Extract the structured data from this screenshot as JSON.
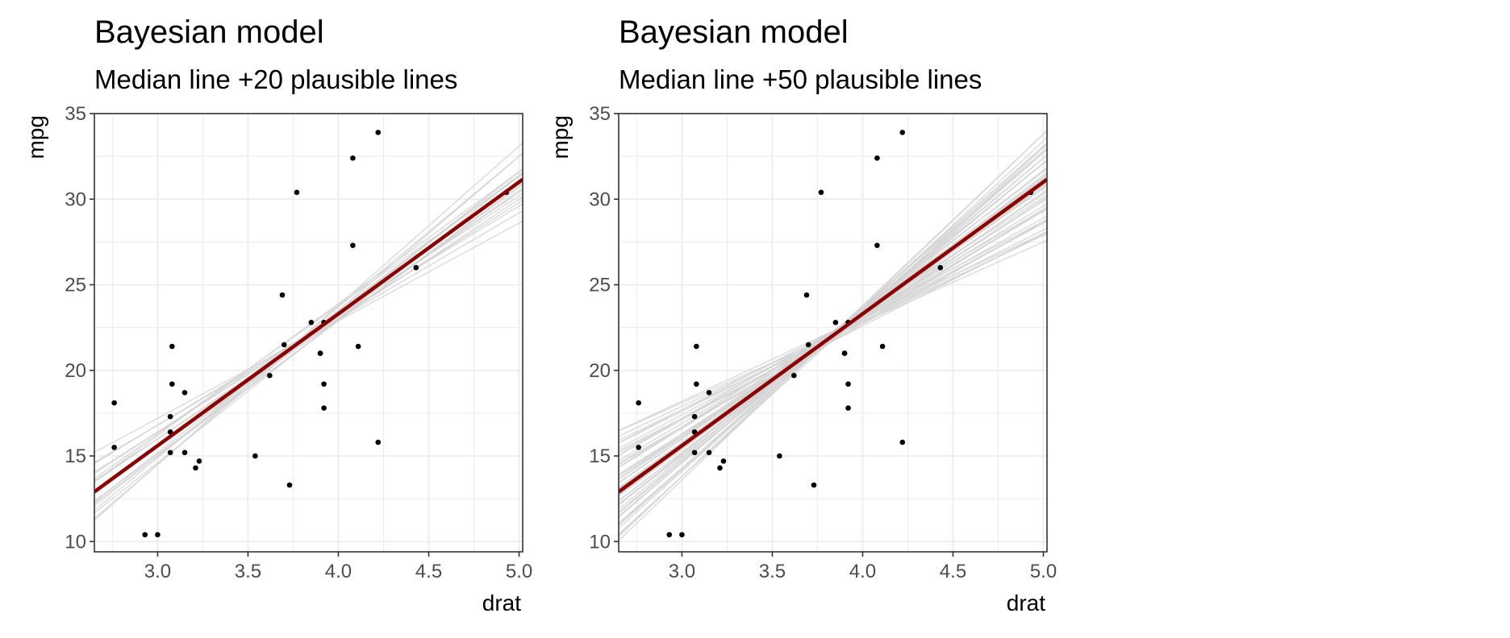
{
  "chart_data": [
    {
      "type": "scatter",
      "title": "Bayesian model",
      "subtitle": "Median line +20 plausible lines",
      "xlabel": "drat",
      "ylabel": "mpg",
      "xlim": [
        2.65,
        5.02
      ],
      "ylim": [
        9.4,
        35.0
      ],
      "xticks": [
        3.0,
        3.5,
        4.0,
        4.5,
        5.0
      ],
      "xtick_labels": [
        "3.0",
        "3.5",
        "4.0",
        "4.5",
        "5.0"
      ],
      "yticks": [
        10,
        15,
        20,
        25,
        30,
        35
      ],
      "ytick_labels": [
        "10",
        "15",
        "20",
        "25",
        "30",
        "35"
      ],
      "grid": true,
      "points": [
        [
          3.9,
          21.0
        ],
        [
          3.9,
          21.0
        ],
        [
          3.85,
          22.8
        ],
        [
          3.08,
          21.4
        ],
        [
          3.15,
          18.7
        ],
        [
          2.76,
          18.1
        ],
        [
          3.21,
          14.3
        ],
        [
          3.69,
          24.4
        ],
        [
          3.92,
          22.8
        ],
        [
          3.92,
          19.2
        ],
        [
          3.92,
          17.8
        ],
        [
          3.07,
          16.4
        ],
        [
          3.07,
          17.3
        ],
        [
          3.07,
          15.2
        ],
        [
          2.93,
          10.4
        ],
        [
          3.0,
          10.4
        ],
        [
          3.23,
          14.7
        ],
        [
          4.08,
          32.4
        ],
        [
          4.93,
          30.4
        ],
        [
          4.22,
          33.9
        ],
        [
          3.7,
          21.5
        ],
        [
          2.76,
          15.5
        ],
        [
          3.15,
          15.2
        ],
        [
          3.73,
          13.3
        ],
        [
          3.08,
          19.2
        ],
        [
          4.08,
          27.3
        ],
        [
          4.43,
          26.0
        ],
        [
          3.77,
          30.4
        ],
        [
          4.22,
          15.8
        ],
        [
          3.62,
          19.7
        ],
        [
          3.54,
          15.0
        ],
        [
          4.11,
          21.4
        ]
      ],
      "median_line": {
        "intercept": -7.5,
        "slope": 7.7
      },
      "plausible_lines": [
        {
          "intercept": -7.5,
          "slope": 7.7
        },
        {
          "intercept": -5.6,
          "slope": 7.2
        },
        {
          "intercept": -9.4,
          "slope": 8.2
        },
        {
          "intercept": -3.7,
          "slope": 6.7
        },
        {
          "intercept": -11.5,
          "slope": 8.8
        },
        {
          "intercept": -1.8,
          "slope": 6.2
        },
        {
          "intercept": -13.4,
          "slope": 9.3
        },
        {
          "intercept": 0.1,
          "slope": 5.7
        },
        {
          "intercept": -6.2,
          "slope": 7.5
        },
        {
          "intercept": -8.7,
          "slope": 7.9
        },
        {
          "intercept": -4.3,
          "slope": 6.9
        },
        {
          "intercept": -10.6,
          "slope": 8.4
        },
        {
          "intercept": -2.4,
          "slope": 6.4
        },
        {
          "intercept": -12.5,
          "slope": 9.0
        },
        {
          "intercept": -7.0,
          "slope": 7.5
        },
        {
          "intercept": -8.1,
          "slope": 7.9
        },
        {
          "intercept": -5.0,
          "slope": 7.0
        },
        {
          "intercept": -9.9,
          "slope": 8.3
        },
        {
          "intercept": -6.9,
          "slope": 7.7
        },
        {
          "intercept": -8.3,
          "slope": 7.8
        }
      ],
      "colors": {
        "points": "#000000",
        "median_line": "#8b0000",
        "plausible_lines": "#d3d3d3"
      }
    },
    {
      "type": "scatter",
      "title": "Bayesian model",
      "subtitle": "Median line +50 plausible lines",
      "xlabel": "drat",
      "ylabel": "mpg",
      "xlim": [
        2.65,
        5.02
      ],
      "ylim": [
        9.4,
        35.0
      ],
      "xticks": [
        3.0,
        3.5,
        4.0,
        4.5,
        5.0
      ],
      "xtick_labels": [
        "3.0",
        "3.5",
        "4.0",
        "4.5",
        "5.0"
      ],
      "yticks": [
        10,
        15,
        20,
        25,
        30,
        35
      ],
      "ytick_labels": [
        "10",
        "15",
        "20",
        "25",
        "30",
        "35"
      ],
      "grid": true,
      "points": [
        [
          3.9,
          21.0
        ],
        [
          3.9,
          21.0
        ],
        [
          3.85,
          22.8
        ],
        [
          3.08,
          21.4
        ],
        [
          3.15,
          18.7
        ],
        [
          2.76,
          18.1
        ],
        [
          3.21,
          14.3
        ],
        [
          3.69,
          24.4
        ],
        [
          3.92,
          22.8
        ],
        [
          3.92,
          19.2
        ],
        [
          3.92,
          17.8
        ],
        [
          3.07,
          16.4
        ],
        [
          3.07,
          17.3
        ],
        [
          3.07,
          15.2
        ],
        [
          2.93,
          10.4
        ],
        [
          3.0,
          10.4
        ],
        [
          3.23,
          14.7
        ],
        [
          4.08,
          32.4
        ],
        [
          4.93,
          30.4
        ],
        [
          4.22,
          33.9
        ],
        [
          3.7,
          21.5
        ],
        [
          2.76,
          15.5
        ],
        [
          3.15,
          15.2
        ],
        [
          3.73,
          13.3
        ],
        [
          3.08,
          19.2
        ],
        [
          4.08,
          27.3
        ],
        [
          4.43,
          26.0
        ],
        [
          3.77,
          30.4
        ],
        [
          4.22,
          15.8
        ],
        [
          3.62,
          19.7
        ],
        [
          3.54,
          15.0
        ],
        [
          4.11,
          21.4
        ]
      ],
      "median_line": {
        "intercept": -7.5,
        "slope": 7.7
      },
      "plausible_lines": [
        {
          "intercept": -7.5,
          "slope": 7.7
        },
        {
          "intercept": -5.2,
          "slope": 7.1
        },
        {
          "intercept": -9.8,
          "slope": 8.3
        },
        {
          "intercept": -2.9,
          "slope": 6.5
        },
        {
          "intercept": -12.1,
          "slope": 8.9
        },
        {
          "intercept": -0.6,
          "slope": 5.9
        },
        {
          "intercept": -14.4,
          "slope": 9.5
        },
        {
          "intercept": 1.7,
          "slope": 5.3
        },
        {
          "intercept": -16.7,
          "slope": 10.1
        },
        {
          "intercept": 4.0,
          "slope": 4.7
        },
        {
          "intercept": -6.2,
          "slope": 7.4
        },
        {
          "intercept": -8.8,
          "slope": 8.0
        },
        {
          "intercept": -4.1,
          "slope": 6.8
        },
        {
          "intercept": -10.9,
          "slope": 8.6
        },
        {
          "intercept": -1.7,
          "slope": 6.2
        },
        {
          "intercept": -13.3,
          "slope": 9.2
        },
        {
          "intercept": 0.6,
          "slope": 5.6
        },
        {
          "intercept": -15.6,
          "slope": 9.8
        },
        {
          "intercept": 2.9,
          "slope": 5.0
        },
        {
          "intercept": -7.0,
          "slope": 7.6
        },
        {
          "intercept": -8.0,
          "slope": 7.8
        },
        {
          "intercept": -5.7,
          "slope": 7.3
        },
        {
          "intercept": -9.3,
          "slope": 8.1
        },
        {
          "intercept": -3.4,
          "slope": 6.7
        },
        {
          "intercept": -11.6,
          "slope": 8.8
        },
        {
          "intercept": -1.1,
          "slope": 6.1
        },
        {
          "intercept": -13.9,
          "slope": 9.4
        },
        {
          "intercept": 1.2,
          "slope": 5.5
        },
        {
          "intercept": -16.2,
          "slope": 10.0
        },
        {
          "intercept": 3.5,
          "slope": 4.9
        },
        {
          "intercept": -6.6,
          "slope": 7.4
        },
        {
          "intercept": -8.4,
          "slope": 8.0
        },
        {
          "intercept": -4.5,
          "slope": 6.9
        },
        {
          "intercept": -10.4,
          "slope": 8.5
        },
        {
          "intercept": -2.2,
          "slope": 6.3
        },
        {
          "intercept": -12.7,
          "slope": 9.1
        },
        {
          "intercept": 0.1,
          "slope": 5.7
        },
        {
          "intercept": -15.0,
          "slope": 9.6
        },
        {
          "intercept": 2.4,
          "slope": 5.1
        },
        {
          "intercept": -7.3,
          "slope": 7.7
        },
        {
          "intercept": -7.7,
          "slope": 7.7
        },
        {
          "intercept": -5.9,
          "slope": 7.3
        },
        {
          "intercept": -9.1,
          "slope": 8.1
        },
        {
          "intercept": -3.6,
          "slope": 6.6
        },
        {
          "intercept": -11.4,
          "slope": 8.7
        },
        {
          "intercept": -1.3,
          "slope": 6.0
        },
        {
          "intercept": -13.7,
          "slope": 9.3
        },
        {
          "intercept": 1.0,
          "slope": 5.4
        },
        {
          "intercept": -6.8,
          "slope": 7.5
        },
        {
          "intercept": -8.2,
          "slope": 7.9
        }
      ],
      "colors": {
        "points": "#000000",
        "median_line": "#8b0000",
        "plausible_lines": "#d3d3d3"
      }
    }
  ]
}
